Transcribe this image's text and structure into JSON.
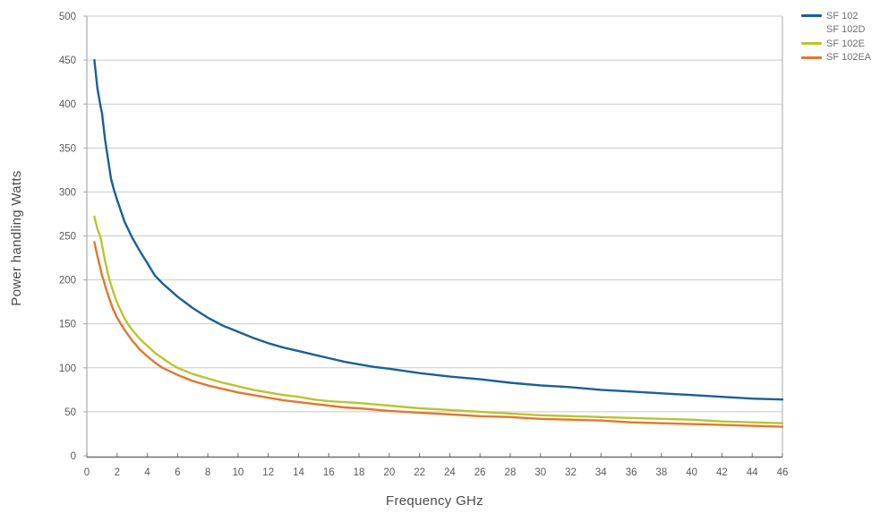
{
  "chart_data": {
    "type": "line",
    "title": "",
    "xlabel": "Frequency GHz",
    "ylabel": "Power handling Watts",
    "xlim": [
      0,
      46
    ],
    "ylim": [
      0,
      500
    ],
    "x_ticks": [
      0,
      2,
      4,
      6,
      8,
      10,
      12,
      14,
      16,
      18,
      20,
      22,
      24,
      26,
      28,
      30,
      32,
      34,
      36,
      38,
      40,
      42,
      44,
      46
    ],
    "y_ticks": [
      0,
      50,
      100,
      150,
      200,
      250,
      300,
      350,
      400,
      450,
      500
    ],
    "grid": "horizontal-only",
    "legend_position": "top-right-outside",
    "series": [
      {
        "name": "SF 102",
        "color": "#1a6096",
        "points": [
          [
            0.5,
            450
          ],
          [
            0.7,
            418
          ],
          [
            0.9,
            398
          ],
          [
            1,
            390
          ],
          [
            1.2,
            360
          ],
          [
            1.4,
            338
          ],
          [
            1.6,
            315
          ],
          [
            1.8,
            302
          ],
          [
            2,
            291
          ],
          [
            2.5,
            266
          ],
          [
            3,
            248
          ],
          [
            3.5,
            233
          ],
          [
            4,
            219
          ],
          [
            4.5,
            205
          ],
          [
            5,
            196
          ],
          [
            6,
            181
          ],
          [
            7,
            168
          ],
          [
            8,
            157
          ],
          [
            9,
            148
          ],
          [
            10,
            141
          ],
          [
            11,
            134
          ],
          [
            12,
            128
          ],
          [
            13,
            123
          ],
          [
            14,
            119
          ],
          [
            15,
            115
          ],
          [
            16,
            111
          ],
          [
            17,
            107
          ],
          [
            18,
            104
          ],
          [
            19,
            101
          ],
          [
            20,
            99
          ],
          [
            22,
            94
          ],
          [
            24,
            90
          ],
          [
            26,
            87
          ],
          [
            28,
            83
          ],
          [
            30,
            80
          ],
          [
            32,
            78
          ],
          [
            34,
            75
          ],
          [
            36,
            73
          ],
          [
            38,
            71
          ],
          [
            40,
            69
          ],
          [
            42,
            67
          ],
          [
            44,
            65
          ],
          [
            46,
            64
          ]
        ]
      },
      {
        "name": "SF 102D",
        "color": "none",
        "points": []
      },
      {
        "name": "SF 102E",
        "color": "#b9c42f",
        "points": [
          [
            0.5,
            272
          ],
          [
            0.7,
            258
          ],
          [
            0.9,
            249
          ],
          [
            1,
            240
          ],
          [
            1.2,
            222
          ],
          [
            1.4,
            207
          ],
          [
            1.5,
            200
          ],
          [
            1.75,
            186
          ],
          [
            2,
            174
          ],
          [
            2.5,
            156
          ],
          [
            2.75,
            149
          ],
          [
            3,
            143
          ],
          [
            3.5,
            133
          ],
          [
            4,
            125
          ],
          [
            4.5,
            117
          ],
          [
            5,
            111
          ],
          [
            5.5,
            105
          ],
          [
            6,
            100
          ],
          [
            7,
            93
          ],
          [
            8,
            88
          ],
          [
            9,
            83
          ],
          [
            10,
            79
          ],
          [
            11,
            75
          ],
          [
            12,
            72
          ],
          [
            13,
            69
          ],
          [
            14,
            67
          ],
          [
            15,
            64
          ],
          [
            16,
            62
          ],
          [
            17,
            61
          ],
          [
            18,
            60
          ],
          [
            20,
            57
          ],
          [
            22,
            54
          ],
          [
            24,
            52
          ],
          [
            26,
            50
          ],
          [
            28,
            48
          ],
          [
            30,
            46
          ],
          [
            32,
            45
          ],
          [
            34,
            44
          ],
          [
            36,
            43
          ],
          [
            38,
            42
          ],
          [
            40,
            41
          ],
          [
            42,
            39
          ],
          [
            44,
            38
          ],
          [
            46,
            37
          ]
        ]
      },
      {
        "name": "SF 102EA",
        "color": "#e2772e",
        "points": [
          [
            0.5,
            243
          ],
          [
            0.7,
            227
          ],
          [
            0.9,
            213
          ],
          [
            1,
            205
          ],
          [
            1.1,
            200
          ],
          [
            1.25,
            191
          ],
          [
            1.5,
            178
          ],
          [
            1.75,
            166
          ],
          [
            2,
            157
          ],
          [
            2.25,
            150
          ],
          [
            2.5,
            143
          ],
          [
            3,
            131
          ],
          [
            3.5,
            121
          ],
          [
            4,
            113
          ],
          [
            4.5,
            106
          ],
          [
            5,
            100
          ],
          [
            5.5,
            96
          ],
          [
            6,
            92
          ],
          [
            7,
            85
          ],
          [
            8,
            80
          ],
          [
            9,
            76
          ],
          [
            10,
            72
          ],
          [
            11,
            69
          ],
          [
            12,
            66
          ],
          [
            13,
            63
          ],
          [
            14,
            61
          ],
          [
            15,
            59
          ],
          [
            16,
            57
          ],
          [
            17,
            55
          ],
          [
            18,
            54
          ],
          [
            20,
            51
          ],
          [
            22,
            49
          ],
          [
            24,
            47
          ],
          [
            26,
            45
          ],
          [
            28,
            44
          ],
          [
            30,
            42
          ],
          [
            32,
            41
          ],
          [
            34,
            40
          ],
          [
            36,
            38
          ],
          [
            38,
            37
          ],
          [
            40,
            36
          ],
          [
            42,
            35
          ],
          [
            44,
            34
          ],
          [
            46,
            33
          ]
        ]
      }
    ],
    "style": {
      "grid_color": "#c9cacb",
      "axis_line_color": "#6d6e71",
      "border_line_color": "#a7a9ac",
      "tick_label_color": "#58595b",
      "axis_title_color": "#4a4b4d",
      "legend_text_color": "#6d6e71",
      "line_width": 2.4
    }
  }
}
